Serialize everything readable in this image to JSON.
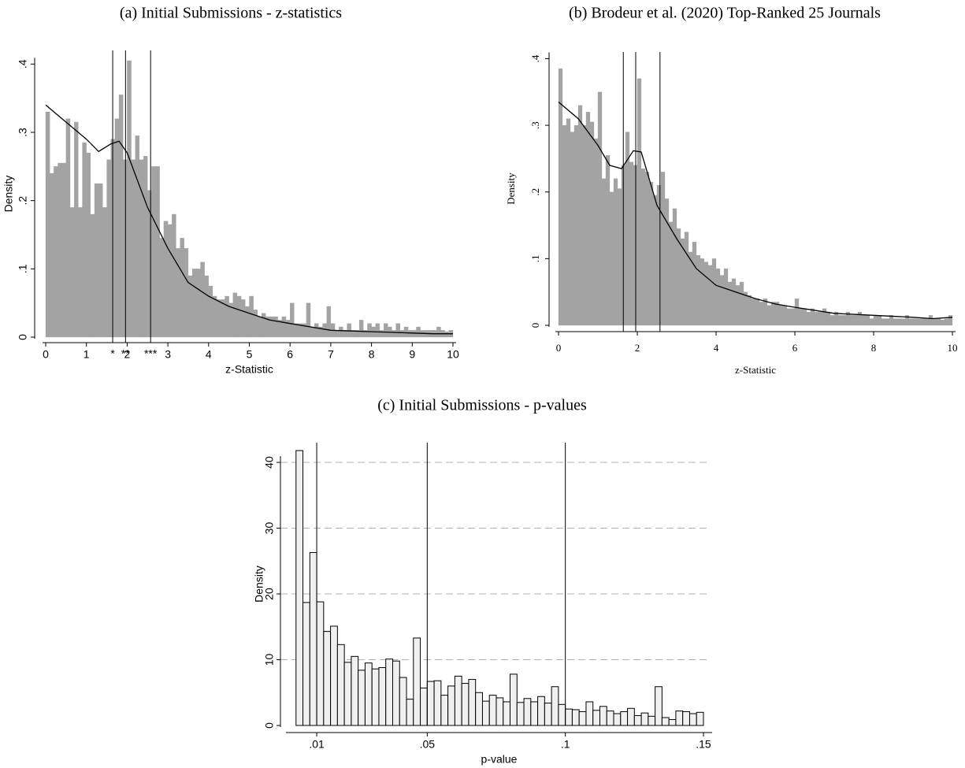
{
  "chart_data": [
    {
      "type": "histogram",
      "title": "(a) Initial Submissions - z-statistics",
      "xlabel": "z-Statistic",
      "ylabel": "Density",
      "font": "sans",
      "color": "#a3a3a3",
      "edgecolor": "none",
      "bins": [
        0,
        0.1,
        0.2,
        0.3,
        0.4,
        0.5,
        0.6,
        0.7,
        0.8,
        0.9,
        1,
        1.1,
        1.2,
        1.3,
        1.4,
        1.5,
        1.6,
        1.7,
        1.8,
        1.9,
        2,
        2.1,
        2.2,
        2.3,
        2.4,
        2.5,
        2.6,
        2.7,
        2.8,
        2.9,
        3,
        3.1,
        3.2,
        3.3,
        3.4,
        3.5,
        3.6,
        3.7,
        3.8,
        3.9,
        4,
        4.1,
        4.2,
        4.3,
        4.4,
        4.5,
        4.6,
        4.7,
        4.8,
        4.9,
        5,
        5.1,
        5.2,
        5.3,
        5.4,
        5.5,
        5.6,
        5.7,
        5.8,
        5.9,
        6,
        6.1,
        6.2,
        6.3,
        6.4,
        6.5,
        6.6,
        6.7,
        6.8,
        6.9,
        7,
        7.1,
        7.2,
        7.3,
        7.4,
        7.5,
        7.6,
        7.7,
        7.8,
        7.9,
        8,
        8.1,
        8.2,
        8.3,
        8.4,
        8.5,
        8.6,
        8.7,
        8.8,
        8.9,
        9,
        9.1,
        9.2,
        9.3,
        9.4,
        9.5,
        9.6,
        9.7,
        9.8,
        9.9,
        10
      ],
      "values": [
        0.33,
        0.24,
        0.25,
        0.255,
        0.255,
        0.32,
        0.19,
        0.315,
        0.19,
        0.285,
        0.27,
        0.18,
        0.225,
        0.225,
        0.19,
        0.26,
        0.29,
        0.32,
        0.355,
        0.26,
        0.405,
        0.26,
        0.295,
        0.26,
        0.265,
        0.215,
        0.25,
        0.25,
        0.145,
        0.17,
        0.165,
        0.18,
        0.13,
        0.145,
        0.13,
        0.09,
        0.1,
        0.1,
        0.11,
        0.09,
        0.075,
        0.06,
        0.055,
        0.055,
        0.06,
        0.05,
        0.065,
        0.06,
        0.055,
        0.045,
        0.06,
        0.04,
        0.03,
        0.035,
        0.03,
        0.03,
        0.03,
        0.025,
        0.03,
        0.025,
        0.05,
        0.02,
        0.02,
        0.02,
        0.05,
        0.015,
        0.02,
        0.015,
        0.02,
        0.045,
        0.02,
        0.01,
        0.015,
        0.01,
        0.02,
        0.01,
        0.01,
        0.025,
        0.01,
        0.02,
        0.015,
        0.02,
        0.01,
        0.02,
        0.015,
        0.01,
        0.02,
        0.01,
        0.015,
        0.01,
        0.01,
        0.015,
        0.01,
        0.01,
        0.01,
        0.01,
        0.015,
        0.01,
        0.008,
        0.01
      ],
      "density_curve": {
        "x": [
          0,
          0.5,
          1,
          1.3,
          1.6,
          1.8,
          2,
          2.5,
          3,
          3.5,
          4,
          4.5,
          5,
          5.5,
          6,
          6.5,
          7,
          7.5,
          8,
          8.5,
          9,
          9.5,
          10
        ],
        "y": [
          0.34,
          0.315,
          0.29,
          0.272,
          0.283,
          0.287,
          0.27,
          0.19,
          0.13,
          0.08,
          0.06,
          0.045,
          0.035,
          0.025,
          0.02,
          0.015,
          0.01,
          0.009,
          0.008,
          0.007,
          0.006,
          0.005,
          0.005
        ]
      },
      "vlines": [
        1.645,
        1.96,
        2.576
      ],
      "vline_labels": [
        "*",
        "**",
        "***"
      ],
      "xlim": [
        0,
        10
      ],
      "xticks": [
        0,
        1,
        2,
        3,
        4,
        5,
        6,
        7,
        8,
        9,
        10
      ],
      "ylim": [
        0,
        0.42
      ],
      "yticks": [
        0,
        {
          "value": 0.1,
          "label": ".1"
        },
        {
          "value": 0.2,
          "label": ".2"
        },
        {
          "value": 0.3,
          "label": ".3"
        },
        {
          "value": 0.4,
          "label": ".4"
        }
      ],
      "grid": false
    },
    {
      "type": "histogram",
      "title": "(b) Brodeur et al. (2020) Top-Ranked 25 Journals",
      "xlabel": "z-Statistic",
      "ylabel": "Density",
      "font": "serif",
      "color": "#a3a3a3",
      "edgecolor": "none",
      "bins": [
        0,
        0.1,
        0.2,
        0.3,
        0.4,
        0.5,
        0.6,
        0.7,
        0.8,
        0.9,
        1,
        1.1,
        1.2,
        1.3,
        1.4,
        1.5,
        1.6,
        1.7,
        1.8,
        1.9,
        2,
        2.1,
        2.2,
        2.3,
        2.4,
        2.5,
        2.6,
        2.7,
        2.8,
        2.9,
        3,
        3.1,
        3.2,
        3.3,
        3.4,
        3.5,
        3.6,
        3.7,
        3.8,
        3.9,
        4,
        4.1,
        4.2,
        4.3,
        4.4,
        4.5,
        4.6,
        4.7,
        4.8,
        4.9,
        5,
        5.1,
        5.2,
        5.3,
        5.4,
        5.5,
        5.6,
        5.7,
        5.8,
        5.9,
        6,
        6.1,
        6.2,
        6.3,
        6.4,
        6.5,
        6.6,
        6.7,
        6.8,
        6.9,
        7,
        7.1,
        7.2,
        7.3,
        7.4,
        7.5,
        7.6,
        7.7,
        7.8,
        7.9,
        8,
        8.1,
        8.2,
        8.3,
        8.4,
        8.5,
        8.6,
        8.7,
        8.8,
        8.9,
        9,
        9.1,
        9.2,
        9.3,
        9.4,
        9.5,
        9.6,
        9.7,
        9.8,
        9.9,
        10
      ],
      "values": [
        0.385,
        0.3,
        0.31,
        0.29,
        0.3,
        0.33,
        0.3,
        0.32,
        0.305,
        0.28,
        0.35,
        0.22,
        0.255,
        0.2,
        0.22,
        0.205,
        0.24,
        0.29,
        0.245,
        0.24,
        0.37,
        0.235,
        0.23,
        0.215,
        0.195,
        0.21,
        0.23,
        0.19,
        0.155,
        0.175,
        0.145,
        0.13,
        0.14,
        0.11,
        0.125,
        0.105,
        0.1,
        0.095,
        0.09,
        0.1,
        0.085,
        0.075,
        0.085,
        0.065,
        0.07,
        0.06,
        0.065,
        0.05,
        0.045,
        0.04,
        0.04,
        0.035,
        0.04,
        0.03,
        0.035,
        0.035,
        0.03,
        0.03,
        0.025,
        0.025,
        0.04,
        0.025,
        0.025,
        0.02,
        0.025,
        0.02,
        0.02,
        0.025,
        0.02,
        0.015,
        0.02,
        0.015,
        0.015,
        0.02,
        0.015,
        0.015,
        0.02,
        0.015,
        0.015,
        0.01,
        0.015,
        0.015,
        0.01,
        0.01,
        0.015,
        0.01,
        0.01,
        0.01,
        0.015,
        0.01,
        0.01,
        0.01,
        0.01,
        0.01,
        0.015,
        0.01,
        0.01,
        0.008,
        0.01,
        0.015
      ],
      "density_curve": {
        "x": [
          0,
          0.5,
          1,
          1.3,
          1.6,
          1.9,
          2.1,
          2.5,
          3,
          3.5,
          4,
          4.5,
          5,
          5.5,
          6,
          7,
          8,
          9,
          9.5,
          10
        ],
        "y": [
          0.335,
          0.31,
          0.27,
          0.24,
          0.235,
          0.262,
          0.26,
          0.18,
          0.13,
          0.085,
          0.06,
          0.05,
          0.04,
          0.032,
          0.027,
          0.018,
          0.015,
          0.012,
          0.01,
          0.012
        ]
      },
      "vlines": [
        1.645,
        1.96,
        2.576
      ],
      "xlim": [
        0,
        10
      ],
      "xticks": [
        0,
        2,
        4,
        6,
        8,
        10
      ],
      "ylim": [
        0,
        0.41
      ],
      "yticks": [
        0,
        {
          "value": 0.1,
          "label": ".1"
        },
        {
          "value": 0.2,
          "label": ".2"
        },
        {
          "value": 0.3,
          "label": ".3"
        },
        {
          "value": 0.4,
          "label": ".4"
        }
      ],
      "grid": false
    },
    {
      "type": "histogram",
      "title": "(c) Initial Submissions - p-values",
      "xlabel": "p-value",
      "ylabel": "Density",
      "font": "sans",
      "color": "#f0f0f0",
      "edgecolor": "#000000",
      "bins": [
        0.0025,
        0.005,
        0.0075,
        0.01,
        0.0125,
        0.015,
        0.0175,
        0.02,
        0.0225,
        0.025,
        0.0275,
        0.03,
        0.0325,
        0.035,
        0.0375,
        0.04,
        0.0425,
        0.045,
        0.0475,
        0.05,
        0.0525,
        0.055,
        0.0575,
        0.06,
        0.0625,
        0.065,
        0.0675,
        0.07,
        0.0725,
        0.075,
        0.0775,
        0.08,
        0.0825,
        0.085,
        0.0875,
        0.09,
        0.0925,
        0.095,
        0.0975,
        0.1,
        0.1025,
        0.105,
        0.1075,
        0.11,
        0.1125,
        0.115,
        0.1175,
        0.12,
        0.1225,
        0.125,
        0.1275,
        0.13,
        0.1325,
        0.135,
        0.1375,
        0.14,
        0.1425,
        0.145,
        0.1475,
        0.15
      ],
      "values": [
        41.8,
        18.7,
        26.3,
        18.8,
        14.3,
        15.1,
        12.3,
        9.6,
        10.5,
        8.4,
        9.5,
        8.6,
        8.8,
        10.1,
        9.8,
        7.3,
        4.0,
        13.3,
        5.7,
        6.7,
        6.8,
        4.6,
        6.0,
        7.5,
        6.4,
        7.0,
        5.0,
        3.7,
        4.6,
        4.2,
        3.6,
        7.8,
        3.5,
        4.1,
        3.6,
        4.4,
        3.4,
        5.9,
        3.2,
        2.5,
        2.4,
        2.1,
        3.6,
        2.3,
        2.9,
        2.2,
        1.8,
        2.1,
        2.6,
        1.5,
        1.9,
        1.4,
        5.9,
        1.2,
        0.9,
        2.2,
        2.1,
        1.8,
        2.0
      ],
      "vlines": [
        0.01,
        0.05,
        0.1
      ],
      "xlim": [
        0,
        0.152
      ],
      "xticks": [
        {
          "value": 0.01,
          "label": ".01"
        },
        {
          "value": 0.05,
          "label": ".05"
        },
        {
          "value": 0.1,
          "label": ".1"
        },
        {
          "value": 0.15,
          "label": ".15"
        }
      ],
      "ylim": [
        0,
        43
      ],
      "yticks": [
        0,
        10,
        20,
        30,
        40
      ],
      "grid": true
    }
  ]
}
